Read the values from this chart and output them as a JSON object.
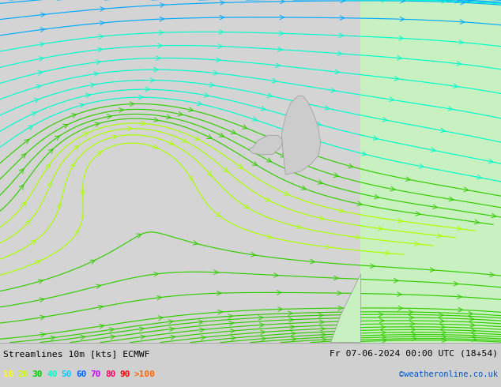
{
  "title_left": "Streamlines 10m [kts] ECMWF",
  "title_right": "Fr 07-06-2024 00:00 UTC (18+54)",
  "watermark": "©weatheronline.co.uk",
  "legend_values": [
    "10",
    "20",
    "30",
    "40",
    "50",
    "60",
    "70",
    "80",
    "90",
    ">100"
  ],
  "legend_colors": [
    "#ffff00",
    "#ccff00",
    "#00cc00",
    "#00ffcc",
    "#00ccff",
    "#0066ff",
    "#cc00ff",
    "#ff0066",
    "#ff0000",
    "#ff6600"
  ],
  "bg_color": "#d0d0d0",
  "land_color_east": "#ccffcc",
  "bottom_bar_color": "#e0e0e0",
  "figwidth": 6.34,
  "figheight": 4.9,
  "dpi": 100
}
